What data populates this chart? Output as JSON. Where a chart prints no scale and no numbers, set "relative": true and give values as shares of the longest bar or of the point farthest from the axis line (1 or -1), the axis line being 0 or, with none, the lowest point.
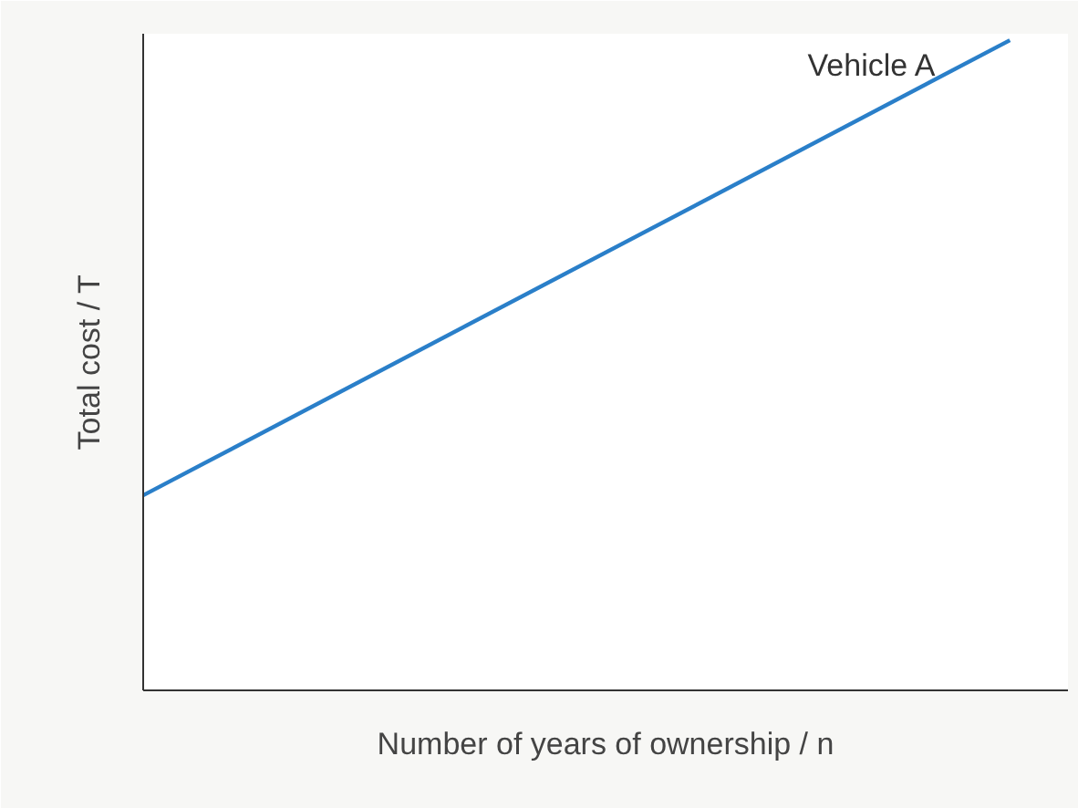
{
  "chart_data": {
    "type": "line",
    "relative": true,
    "xlabel": "Number of years of ownership / n",
    "ylabel": "Total cost / T",
    "categories": [
      null,
      null
    ],
    "series": [
      {
        "name": "Vehicle A",
        "color": "#2a7fc9",
        "values": [
          0.3,
          1
        ]
      }
    ],
    "legend": false
  }
}
